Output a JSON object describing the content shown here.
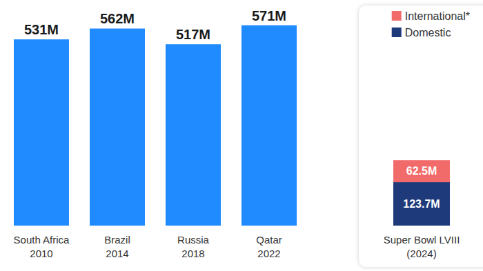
{
  "chart_data": [
    {
      "type": "bar",
      "categories": [
        "South Africa\n2010",
        "Brazil\n2014",
        "Russia\n2018",
        "Qatar\n2022"
      ],
      "values": [
        531,
        562,
        517,
        571
      ],
      "value_labels": [
        "531M",
        "562M",
        "517M",
        "571M"
      ],
      "color": "#1f8bff",
      "ylim": [
        0,
        600
      ],
      "grid": false,
      "tick_labels": false,
      "data_labels": true
    },
    {
      "type": "bar",
      "categories": [
        "Super Bowl LVIII\n(2024)"
      ],
      "series": [
        {
          "name": "International*",
          "color": "#f26b6b",
          "values": [
            62.5
          ],
          "value_labels": [
            "62.5M"
          ]
        },
        {
          "name": "Domestic",
          "color": "#1f3a7a",
          "values": [
            123.7
          ],
          "value_labels": [
            "123.7M"
          ]
        }
      ],
      "stacked": true,
      "legend": "top-right",
      "ylim": [
        0,
        600
      ],
      "grid": false,
      "tick_labels": false,
      "data_labels": true
    }
  ]
}
